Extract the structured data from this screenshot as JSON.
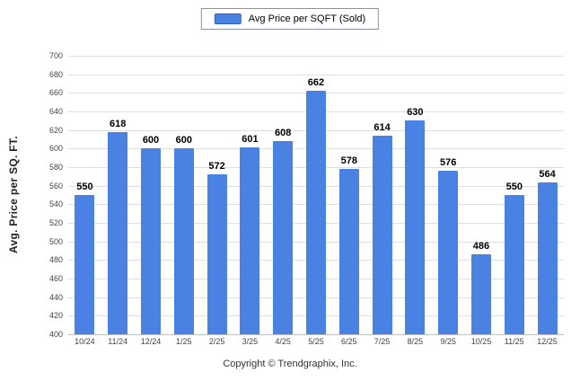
{
  "legend": {
    "label": "Avg Price per SQFT (Sold)",
    "swatch_color": "#4a82e4"
  },
  "chart_data": {
    "type": "bar",
    "categories": [
      "10/24",
      "11/24",
      "12/24",
      "1/25",
      "2/25",
      "3/25",
      "4/25",
      "5/25",
      "6/25",
      "7/25",
      "8/25",
      "9/25",
      "10/25",
      "11/25",
      "12/25"
    ],
    "values": [
      550,
      618,
      600,
      600,
      572,
      601,
      608,
      662,
      578,
      614,
      630,
      576,
      486,
      550,
      564
    ],
    "title": "",
    "xlabel": "",
    "ylabel": "Avg. Price per SQ. FT.",
    "ylim": [
      400,
      700
    ],
    "ytick_step": 20,
    "bar_color": "#4a82e4",
    "grid": true,
    "legend_position": "top"
  },
  "footer": {
    "text": "Copyright © Trendgraphix, Inc."
  }
}
